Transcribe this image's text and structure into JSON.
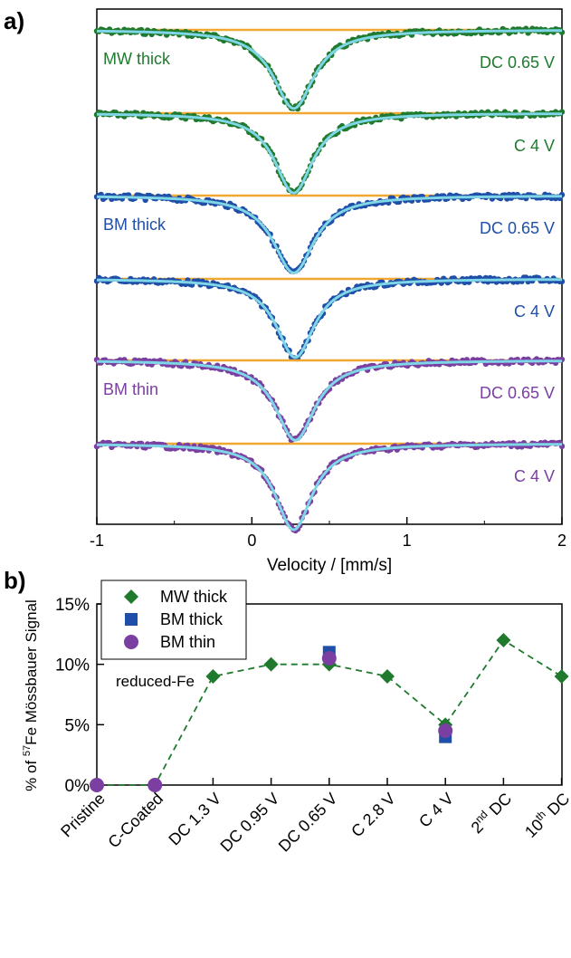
{
  "panel_a": {
    "label": "a)"
  },
  "panel_b": {
    "label": "b)"
  },
  "colors": {
    "mw": "#1f7a2e",
    "bm_thick": "#1f4fa8",
    "bm_thin": "#7a3fa0",
    "fit": "#7fd6e6",
    "baseline": "#f0a830",
    "axis": "#000000"
  },
  "chart_data": [
    {
      "type": "line",
      "subtype": "stacked-mossbauer-spectra",
      "xlabel": "Velocity / [mm/s]",
      "xlim": [
        -1,
        2
      ],
      "xticks": [
        -1,
        0,
        1,
        2
      ],
      "tick_labels": [
        "-1",
        "0",
        "1",
        "2"
      ],
      "y_axis_labels": "none",
      "series": [
        {
          "name": "MW thick",
          "condition": "DC 0.65 V",
          "color": "mw",
          "depth": 0.62,
          "center": 0.27,
          "width": 0.32,
          "show_left_label": true
        },
        {
          "name": "MW thick",
          "condition": "C 4 V",
          "color": "mw",
          "depth": 0.63,
          "center": 0.27,
          "width": 0.3,
          "show_left_label": false
        },
        {
          "name": "BM thick",
          "condition": "DC 0.65 V",
          "color": "bm_thick",
          "depth": 0.61,
          "center": 0.27,
          "width": 0.32,
          "show_left_label": true
        },
        {
          "name": "BM thick",
          "condition": "C 4 V",
          "color": "bm_thick",
          "depth": 0.62,
          "center": 0.28,
          "width": 0.3,
          "show_left_label": false
        },
        {
          "name": "BM thin",
          "condition": "DC 0.65 V",
          "color": "bm_thin",
          "depth": 0.63,
          "center": 0.28,
          "width": 0.31,
          "show_left_label": true
        },
        {
          "name": "BM thin",
          "condition": "C 4 V",
          "color": "bm_thin",
          "depth": 0.68,
          "center": 0.27,
          "width": 0.29,
          "show_left_label": false
        }
      ]
    },
    {
      "type": "scatter",
      "ylabel": "% of ⁵⁷Fe Mössbauer Signal",
      "ylabel_parts": {
        "pre": "% of ",
        "sup": "57",
        "post": "Fe Mössbauer Signal"
      },
      "annotation": "reduced-Fe",
      "ylim": [
        0,
        15
      ],
      "yticks": [
        0,
        5,
        10,
        15
      ],
      "ytick_labels": [
        "0%",
        "5%",
        "10%",
        "15%"
      ],
      "categories": [
        "Pristine",
        "C-Coated",
        "DC 1.3 V",
        "DC 0.95 V",
        "DC 0.65 V",
        "C 2.8 V",
        "C 4 V",
        "2nd DC",
        "10th DC"
      ],
      "category_labels": [
        {
          "main": "Pristine"
        },
        {
          "main": "C-Coated"
        },
        {
          "main": "DC 1.3 V"
        },
        {
          "main": "DC 0.95 V"
        },
        {
          "main": "DC 0.65 V"
        },
        {
          "main": "C 2.8 V"
        },
        {
          "main": "C 4 V"
        },
        {
          "pre": "2",
          "sup": "nd",
          "post": " DC"
        },
        {
          "pre": "10",
          "sup": "th",
          "post": " DC"
        }
      ],
      "series": [
        {
          "name": "MW thick",
          "marker": "diamond",
          "color": "mw",
          "line": "dashed",
          "values": [
            0,
            0,
            9,
            10,
            10,
            9,
            5,
            12,
            9
          ]
        },
        {
          "name": "BM thick",
          "marker": "square",
          "color": "bm_thick",
          "line": "none",
          "values": [
            null,
            null,
            null,
            null,
            11,
            null,
            4,
            null,
            null
          ]
        },
        {
          "name": "BM thin",
          "marker": "circle",
          "color": "bm_thin",
          "line": "none",
          "values": [
            0,
            0,
            null,
            null,
            10.5,
            null,
            4.5,
            null,
            null
          ]
        }
      ],
      "legend": {
        "position": "top-left",
        "entries": [
          "MW thick",
          "BM thick",
          "BM thin"
        ]
      }
    }
  ]
}
